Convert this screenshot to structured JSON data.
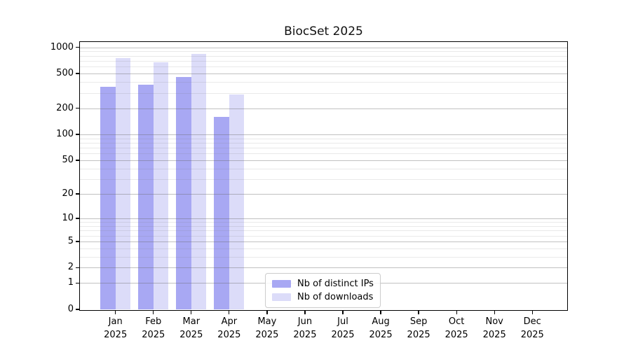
{
  "chart_data": {
    "type": "bar",
    "title": "BiocSet 2025",
    "y_scale": "log1p",
    "ylim": [
      0,
      1150
    ],
    "y_ticks": [
      0,
      1,
      2,
      5,
      10,
      20,
      50,
      100,
      200,
      500,
      1000
    ],
    "y_minor_ticks": [
      3,
      4,
      6,
      7,
      8,
      9,
      30,
      40,
      60,
      70,
      80,
      90,
      300,
      400,
      600,
      700,
      800,
      900
    ],
    "categories": [
      "Jan",
      "Feb",
      "Mar",
      "Apr",
      "May",
      "Jun",
      "Jul",
      "Aug",
      "Sep",
      "Oct",
      "Nov",
      "Dec"
    ],
    "year": "2025",
    "grid": true,
    "legend_position": "inside-bottom-center",
    "series": [
      {
        "name": "Nb of distinct IPs",
        "color": "#a8a8f3",
        "values": [
          350,
          370,
          455,
          160,
          null,
          null,
          null,
          null,
          null,
          null,
          null,
          null
        ]
      },
      {
        "name": "Nb of downloads",
        "color": "#dcdcf9",
        "values": [
          750,
          670,
          840,
          290,
          null,
          null,
          null,
          null,
          null,
          null,
          null,
          null
        ]
      }
    ]
  }
}
